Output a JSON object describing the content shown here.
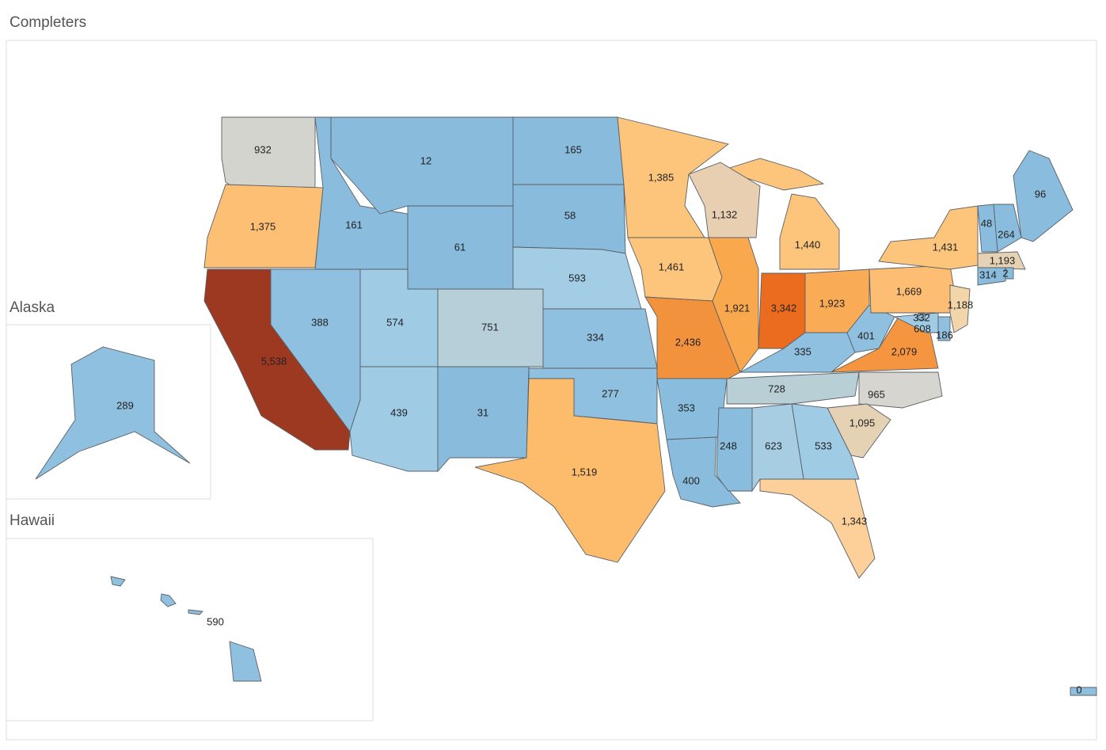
{
  "title": "Completers",
  "insets": [
    {
      "title": "Alaska"
    },
    {
      "title": "Hawaii"
    }
  ],
  "regions": [
    {
      "value": 932,
      "color": "#d3d4cd"
    },
    {
      "value": 1375,
      "label": "1,375",
      "color": "#fdbf74"
    },
    {
      "value": 5538,
      "label": "5,538",
      "color": "#9d3921"
    },
    {
      "value": 388,
      "color": "#8fc0df"
    },
    {
      "value": 161,
      "color": "#8abddd"
    },
    {
      "value": 12,
      "color": "#88bbdc"
    },
    {
      "value": 61,
      "color": "#88bbdc"
    },
    {
      "value": 574,
      "color": "#9fcbe4"
    },
    {
      "value": 751,
      "color": "#b6cfd9"
    },
    {
      "value": 439,
      "color": "#9fcbe4"
    },
    {
      "value": 31,
      "color": "#88bbdc"
    },
    {
      "value": 165,
      "color": "#88bbdc"
    },
    {
      "value": 58,
      "color": "#88bbdc"
    },
    {
      "value": 593,
      "color": "#a2cde4"
    },
    {
      "value": 334,
      "color": "#8fc0df"
    },
    {
      "value": 277,
      "color": "#8fc0df"
    },
    {
      "value": 1519,
      "label": "1,519",
      "color": "#fdbb6c"
    },
    {
      "value": 1385,
      "label": "1,385",
      "color": "#fdc57c"
    },
    {
      "value": 1461,
      "label": "1,461",
      "color": "#fdc57c"
    },
    {
      "value": 2436,
      "label": "2,436",
      "color": "#f2923c"
    },
    {
      "value": 353,
      "color": "#8abddd"
    },
    {
      "value": 400,
      "color": "#8abddd"
    },
    {
      "value": 1132,
      "label": "1,132",
      "color": "#e9cfb1"
    },
    {
      "value": 1921,
      "label": "1,921",
      "color": "#f9a84e"
    },
    {
      "value": 3342,
      "label": "3,342",
      "color": "#ec6c1f"
    },
    {
      "value": 1440,
      "label": "1,440",
      "color": "#fdc57c"
    },
    {
      "value": 1923,
      "label": "1,923",
      "color": "#f9ab55"
    },
    {
      "value": 335,
      "color": "#8fc0df"
    },
    {
      "value": 728,
      "color": "#b8cfd6"
    },
    {
      "value": 401,
      "color": "#8fc0df"
    },
    {
      "value": 2079,
      "label": "2,079",
      "color": "#f5953f"
    },
    {
      "value": 1669,
      "label": "1,669",
      "color": "#fdbd73"
    },
    {
      "value": 1431,
      "label": "1,431",
      "color": "#fdc57c"
    },
    {
      "value": 965,
      "color": "#d6d5cf"
    },
    {
      "value": 1095,
      "label": "1,095",
      "color": "#e5d1b4"
    },
    {
      "value": 533,
      "color": "#9fcbe4"
    },
    {
      "value": 623,
      "color": "#a6cde1"
    },
    {
      "value": 248,
      "color": "#8abddd"
    },
    {
      "value": 1343,
      "label": "1,343",
      "color": "#fdd09a"
    },
    {
      "value": 96,
      "color": "#8abddd"
    },
    {
      "value": 264,
      "color": "#8abddd"
    },
    {
      "value": 48,
      "color": "#8abddd"
    },
    {
      "value": 1193,
      "label": "1,193",
      "color": "#e5d1b4"
    },
    {
      "value": 2,
      "color": "#8abddd"
    },
    {
      "value": 314,
      "color": "#8abddd"
    },
    {
      "value": 1188,
      "label": "1,188",
      "color": "#f2d5a9"
    },
    {
      "value": 186,
      "color": "#8fc0df"
    },
    {
      "value": 608,
      "color": "#9fcbe4"
    },
    {
      "value": 332,
      "color": "#8fc0df"
    },
    {
      "value": 289,
      "color": "#8fc0df"
    },
    {
      "value": 590,
      "color": "#8fc0df"
    },
    {
      "value": 0,
      "color": "#8fc0df"
    }
  ]
}
